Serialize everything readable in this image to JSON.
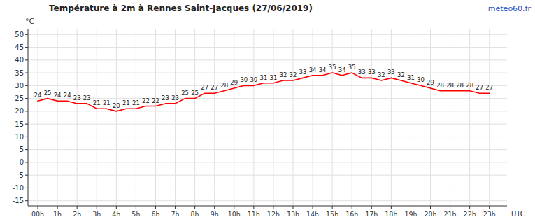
{
  "chart_data": {
    "type": "line",
    "title": "Température à 2m à Rennes Saint-Jacques (27/06/2019)",
    "y_label": "°C",
    "x_label": "UTC",
    "annotations": [
      "meteo60.fr"
    ],
    "x": [
      0,
      0.5,
      1,
      1.5,
      2,
      2.5,
      3,
      3.5,
      4,
      4.5,
      5,
      5.5,
      6,
      6.5,
      7,
      7.5,
      8,
      8.5,
      9,
      9.5,
      10,
      10.5,
      11,
      11.5,
      12,
      12.5,
      13,
      13.5,
      14,
      14.5,
      15,
      15.5,
      16,
      16.5,
      17,
      17.5,
      18,
      18.5,
      19,
      19.5,
      20,
      20.5,
      21,
      21.5,
      22,
      22.5,
      23
    ],
    "series": [
      {
        "color": "#ff0000",
        "values": [
          24,
          25,
          24,
          24,
          23,
          23,
          21,
          21,
          20,
          21,
          21,
          22,
          22,
          23,
          23,
          25,
          25,
          27,
          27,
          28,
          29,
          30,
          30,
          31,
          31,
          32,
          32,
          33,
          34,
          34,
          35,
          34,
          35,
          33,
          33,
          32,
          33,
          32,
          31,
          30,
          29,
          28,
          28,
          28,
          28,
          27,
          27
        ]
      }
    ],
    "xlim": [
      -0.5,
      23.9
    ],
    "ylim": [
      -17,
      52
    ],
    "xticks": [
      {
        "value": 0,
        "label": "00h"
      },
      {
        "value": 1,
        "label": "1h"
      },
      {
        "value": 2,
        "label": "2h"
      },
      {
        "value": 3,
        "label": "3h"
      },
      {
        "value": 4,
        "label": "4h"
      },
      {
        "value": 5,
        "label": "5h"
      },
      {
        "value": 6,
        "label": "6h"
      },
      {
        "value": 7,
        "label": "7h"
      },
      {
        "value": 8,
        "label": "8h"
      },
      {
        "value": 9,
        "label": "9h"
      },
      {
        "value": 10,
        "label": "10h"
      },
      {
        "value": 11,
        "label": "11h"
      },
      {
        "value": 12,
        "label": "12h"
      },
      {
        "value": 13,
        "label": "13h"
      },
      {
        "value": 14,
        "label": "14h"
      },
      {
        "value": 15,
        "label": "15h"
      },
      {
        "value": 16,
        "label": "16h"
      },
      {
        "value": 17,
        "label": "17h"
      },
      {
        "value": 18,
        "label": "18h"
      },
      {
        "value": 19,
        "label": "19h"
      },
      {
        "value": 20,
        "label": "20h"
      },
      {
        "value": 21,
        "label": "21h"
      },
      {
        "value": 22,
        "label": "22h"
      },
      {
        "value": 23,
        "label": "23h"
      }
    ],
    "yticks": [
      -15,
      -10,
      -5,
      0,
      5,
      10,
      15,
      20,
      25,
      30,
      35,
      40,
      45,
      50
    ],
    "grid": true,
    "data_labels": true
  }
}
